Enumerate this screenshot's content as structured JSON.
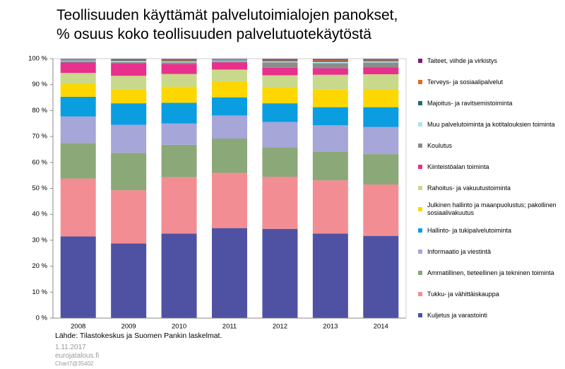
{
  "chart_data": {
    "type": "stacked_bar",
    "title": "Teollisuuden käyttämät palvelutoimialojen panokset,\n% osuus koko teollisuuden palvelutuotekäytöstä",
    "categories": [
      "2008",
      "2009",
      "2010",
      "2011",
      "2012",
      "2013",
      "2014"
    ],
    "series": [
      {
        "name": "Kuljetus ja varastointi",
        "color": "#4f52a3",
        "values": [
          31.5,
          28.8,
          32.6,
          34.7,
          34.4,
          32.6,
          31.7
        ]
      },
      {
        "name": "Tukku- ja vähittäiskauppa",
        "color": "#f28e93",
        "values": [
          22.3,
          20.5,
          21.7,
          21.3,
          20.1,
          20.5,
          19.8
        ]
      },
      {
        "name": "Ammatillinen, tieteellinen ja tekninen toiminta",
        "color": "#8ba878",
        "values": [
          13.7,
          14.4,
          12.5,
          13.2,
          11.4,
          11.1,
          11.7
        ]
      },
      {
        "name": "Informaatio ja viestintä",
        "color": "#a6a6d8",
        "values": [
          10.2,
          10.8,
          8.2,
          8.9,
          9.7,
          10.1,
          10.5
        ]
      },
      {
        "name": "Hallinto- ja tukipalvelutoiminta",
        "color": "#0a9ee0",
        "values": [
          7.6,
          8.3,
          8.0,
          7.0,
          7.2,
          7.0,
          7.6
        ]
      },
      {
        "name": "Julkinen hallinto ja maanpuolustus; pakollinen sosiaalivakuutus",
        "color": "#ffd700",
        "values": [
          4.9,
          5.5,
          6.2,
          6.2,
          6.0,
          6.8,
          6.7
        ]
      },
      {
        "name": "Rahoitus- ja vakuutustoiminta",
        "color": "#c9d98b",
        "values": [
          4.3,
          5.1,
          4.9,
          4.5,
          4.8,
          5.7,
          6.0
        ]
      },
      {
        "name": "Kiinteistöalan toiminta",
        "color": "#e8308c",
        "values": [
          4.0,
          4.9,
          3.9,
          2.8,
          2.9,
          2.5,
          2.6
        ]
      },
      {
        "name": "Koulutus",
        "color": "#8c8c8c",
        "values": [
          0.5,
          0.4,
          0.6,
          0.4,
          2.1,
          2.0,
          1.9
        ]
      },
      {
        "name": "Muu palvelutoiminta ja kotitalouksien toiminta",
        "color": "#aee3f0",
        "values": [
          0.3,
          0.4,
          0.4,
          0.3,
          0.4,
          0.5,
          0.5
        ]
      },
      {
        "name": "Majoitus- ja ravitsemistoiminta",
        "color": "#1e6b7a",
        "values": [
          0.2,
          0.3,
          0.3,
          0.2,
          0.3,
          0.4,
          0.3
        ]
      },
      {
        "name": "Terveys- ja sosiaalipalvelut",
        "color": "#e06a1e",
        "values": [
          0.2,
          0.2,
          0.3,
          0.2,
          0.2,
          0.3,
          0.3
        ]
      },
      {
        "name": "Taiteet, viihde ja virkistys",
        "color": "#7b1e7a",
        "values": [
          0.3,
          0.4,
          0.4,
          0.3,
          0.5,
          0.5,
          0.4
        ]
      }
    ],
    "ylim": [
      0,
      100
    ],
    "yticks": [
      {
        "value": 0,
        "label": "0 %"
      },
      {
        "value": 10,
        "label": "10 %"
      },
      {
        "value": 20,
        "label": "20 %"
      },
      {
        "value": 30,
        "label": "30 %"
      },
      {
        "value": 40,
        "label": "40 %"
      },
      {
        "value": 50,
        "label": "50 %"
      },
      {
        "value": 60,
        "label": "60 %"
      },
      {
        "value": 70,
        "label": "70 %"
      },
      {
        "value": 80,
        "label": "80 %"
      },
      {
        "value": 90,
        "label": "90 %"
      },
      {
        "value": 100,
        "label": "100 %"
      }
    ],
    "grid": false,
    "legend": "right"
  },
  "source": "Lähde: Tilastokeskus ja Suomen Pankin laskelmat.",
  "date": "1.11.2017",
  "website": "eurojatalous.fi",
  "chart_id": "Chart7@35402"
}
